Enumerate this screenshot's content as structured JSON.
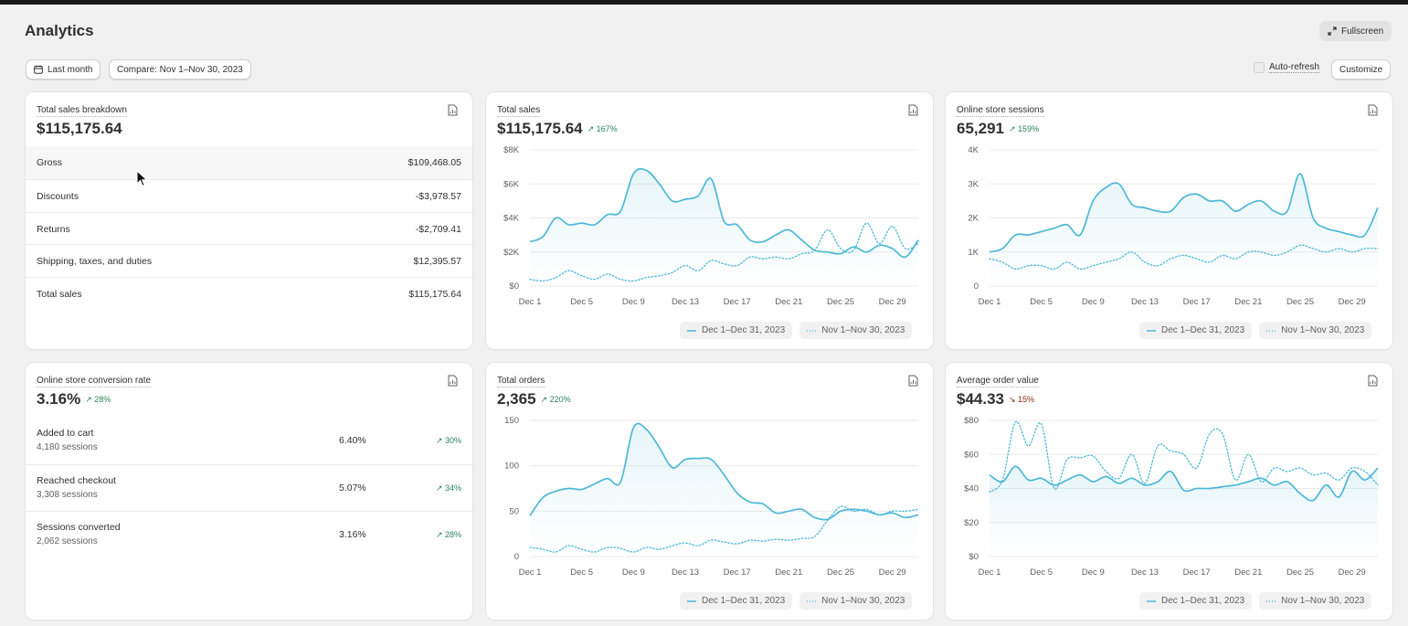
{
  "page": {
    "title": "Analytics"
  },
  "toolbar": {
    "fullscreen_label": "Fullscreen",
    "date_range_label": "Last month",
    "compare_label": "Compare: Nov 1–Nov 30, 2023",
    "auto_refresh_label": "Auto-refresh",
    "customize_label": "Customize"
  },
  "legend": {
    "current": "Dec 1–Dec 31, 2023",
    "previous": "Nov 1–Nov 30, 2023"
  },
  "breakdown": {
    "title": "Total sales breakdown",
    "value": "$115,175.64",
    "rows": [
      {
        "label": "Gross",
        "value": "$109,468.05"
      },
      {
        "label": "Discounts",
        "value": "-$3,978.57"
      },
      {
        "label": "Returns",
        "value": "-$2,709.41"
      },
      {
        "label": "Shipping, taxes, and duties",
        "value": "$12,395.57"
      },
      {
        "label": "Total sales",
        "value": "$115,175.64"
      }
    ]
  },
  "conversion": {
    "title": "Online store conversion rate",
    "value": "3.16%",
    "delta": "28%",
    "rows": [
      {
        "label": "Added to cart",
        "sessions": "4,180 sessions",
        "pct": "6.40%",
        "delta": "30%"
      },
      {
        "label": "Reached checkout",
        "sessions": "3,308 sessions",
        "pct": "5.07%",
        "delta": "34%"
      },
      {
        "label": "Sessions converted",
        "sessions": "2,062 sessions",
        "pct": "3.16%",
        "delta": "28%"
      }
    ]
  },
  "chart_data": [
    {
      "id": "total-sales",
      "type": "line",
      "title": "Total sales",
      "value": "$115,175.64",
      "delta": "167%",
      "delta_dir": "up",
      "ylim": [
        0,
        8000
      ],
      "yticks": [
        0,
        2000,
        4000,
        6000,
        8000
      ],
      "ytick_labels": [
        "$0",
        "$2K",
        "$4K",
        "$6K",
        "$8K"
      ],
      "xticks": [
        1,
        5,
        9,
        13,
        17,
        21,
        25,
        29
      ],
      "xtick_labels": [
        "Dec 1",
        "Dec 5",
        "Dec 9",
        "Dec 13",
        "Dec 17",
        "Dec 21",
        "Dec 25",
        "Dec 29"
      ],
      "x": [
        1,
        2,
        3,
        4,
        5,
        6,
        7,
        8,
        9,
        10,
        11,
        12,
        13,
        14,
        15,
        16,
        17,
        18,
        19,
        20,
        21,
        22,
        23,
        24,
        25,
        26,
        27,
        28,
        29,
        30,
        31
      ],
      "series": [
        {
          "name": "Dec 1–Dec 31, 2023",
          "values": [
            2600,
            2900,
            4000,
            3600,
            3700,
            3600,
            4200,
            4400,
            6600,
            6800,
            6000,
            5000,
            5100,
            5300,
            6300,
            3800,
            3600,
            2700,
            2600,
            3000,
            3300,
            2700,
            2100,
            2000,
            1900,
            2300,
            2000,
            2400,
            2200,
            1700,
            2700
          ]
        },
        {
          "name": "Nov 1–Nov 30, 2023",
          "values": [
            400,
            300,
            500,
            900,
            600,
            400,
            700,
            400,
            300,
            500,
            600,
            800,
            1200,
            900,
            1500,
            1300,
            1200,
            1700,
            1600,
            1700,
            1600,
            1900,
            2100,
            3300,
            2200,
            2100,
            3700,
            2500,
            3500,
            2200,
            2500
          ]
        }
      ]
    },
    {
      "id": "sessions",
      "type": "line",
      "title": "Online store sessions",
      "value": "65,291",
      "delta": "159%",
      "delta_dir": "up",
      "ylim": [
        0,
        4000
      ],
      "yticks": [
        0,
        1000,
        2000,
        3000,
        4000
      ],
      "ytick_labels": [
        "0",
        "1K",
        "2K",
        "3K",
        "4K"
      ],
      "xticks": [
        1,
        5,
        9,
        13,
        17,
        21,
        25,
        29
      ],
      "xtick_labels": [
        "Dec 1",
        "Dec 5",
        "Dec 9",
        "Dec 13",
        "Dec 17",
        "Dec 21",
        "Dec 25",
        "Dec 29"
      ],
      "x": [
        1,
        2,
        3,
        4,
        5,
        6,
        7,
        8,
        9,
        10,
        11,
        12,
        13,
        14,
        15,
        16,
        17,
        18,
        19,
        20,
        21,
        22,
        23,
        24,
        25,
        26,
        27,
        28,
        29,
        30,
        31
      ],
      "series": [
        {
          "name": "Dec 1–Dec 31, 2023",
          "values": [
            1000,
            1100,
            1500,
            1500,
            1600,
            1700,
            1800,
            1500,
            2500,
            2900,
            3000,
            2400,
            2300,
            2200,
            2200,
            2600,
            2700,
            2500,
            2500,
            2200,
            2400,
            2500,
            2200,
            2200,
            3300,
            2000,
            1700,
            1600,
            1500,
            1500,
            2300
          ]
        },
        {
          "name": "Nov 1–Nov 30, 2023",
          "values": [
            800,
            700,
            500,
            600,
            600,
            500,
            700,
            500,
            600,
            700,
            800,
            1000,
            700,
            600,
            800,
            900,
            800,
            700,
            900,
            800,
            1000,
            1000,
            900,
            1000,
            1200,
            1100,
            1000,
            1100,
            1000,
            1100,
            1100
          ]
        }
      ]
    },
    {
      "id": "orders",
      "type": "line",
      "title": "Total orders",
      "value": "2,365",
      "delta": "220%",
      "delta_dir": "up",
      "ylim": [
        0,
        150
      ],
      "yticks": [
        0,
        50,
        100,
        150
      ],
      "ytick_labels": [
        "0",
        "50",
        "100",
        "150"
      ],
      "xticks": [
        1,
        5,
        9,
        13,
        17,
        21,
        25,
        29
      ],
      "xtick_labels": [
        "Dec 1",
        "Dec 5",
        "Dec 9",
        "Dec 13",
        "Dec 17",
        "Dec 21",
        "Dec 25",
        "Dec 29"
      ],
      "x": [
        1,
        2,
        3,
        4,
        5,
        6,
        7,
        8,
        9,
        10,
        11,
        12,
        13,
        14,
        15,
        16,
        17,
        18,
        19,
        20,
        21,
        22,
        23,
        24,
        25,
        26,
        27,
        28,
        29,
        30,
        31
      ],
      "series": [
        {
          "name": "Dec 1–Dec 31, 2023",
          "values": [
            45,
            65,
            72,
            75,
            74,
            80,
            86,
            82,
            142,
            140,
            120,
            98,
            107,
            108,
            107,
            90,
            70,
            60,
            58,
            48,
            50,
            52,
            43,
            41,
            50,
            52,
            50,
            46,
            48,
            43,
            46
          ]
        },
        {
          "name": "Nov 1–Nov 30, 2023",
          "values": [
            10,
            8,
            5,
            12,
            8,
            5,
            10,
            9,
            5,
            10,
            8,
            12,
            15,
            12,
            18,
            16,
            14,
            18,
            17,
            19,
            18,
            20,
            22,
            40,
            55,
            50,
            52,
            46,
            50,
            50,
            52
          ]
        }
      ]
    },
    {
      "id": "aov",
      "type": "line",
      "title": "Average order value",
      "value": "$44.33",
      "delta": "15%",
      "delta_dir": "down",
      "ylim": [
        0,
        80
      ],
      "yticks": [
        0,
        20,
        40,
        60,
        80
      ],
      "ytick_labels": [
        "$0",
        "$20",
        "$40",
        "$60",
        "$80"
      ],
      "xticks": [
        1,
        5,
        9,
        13,
        17,
        21,
        25,
        29
      ],
      "xtick_labels": [
        "Dec 1",
        "Dec 5",
        "Dec 9",
        "Dec 13",
        "Dec 17",
        "Dec 21",
        "Dec 25",
        "Dec 29"
      ],
      "x": [
        1,
        2,
        3,
        4,
        5,
        6,
        7,
        8,
        9,
        10,
        11,
        12,
        13,
        14,
        15,
        16,
        17,
        18,
        19,
        20,
        21,
        22,
        23,
        24,
        25,
        26,
        27,
        28,
        29,
        30,
        31
      ],
      "series": [
        {
          "name": "Dec 1–Dec 31, 2023",
          "values": [
            48,
            44,
            53,
            45,
            46,
            42,
            45,
            48,
            44,
            47,
            43,
            46,
            42,
            44,
            50,
            39,
            40,
            40,
            41,
            42,
            44,
            46,
            42,
            44,
            37,
            33,
            42,
            35,
            50,
            45,
            52
          ]
        },
        {
          "name": "Nov 1–Nov 30, 2023",
          "values": [
            38,
            45,
            79,
            65,
            78,
            40,
            57,
            58,
            59,
            50,
            46,
            60,
            43,
            65,
            62,
            60,
            52,
            72,
            72,
            45,
            60,
            44,
            52,
            50,
            52,
            48,
            49,
            45,
            52,
            50,
            42
          ]
        }
      ]
    }
  ]
}
